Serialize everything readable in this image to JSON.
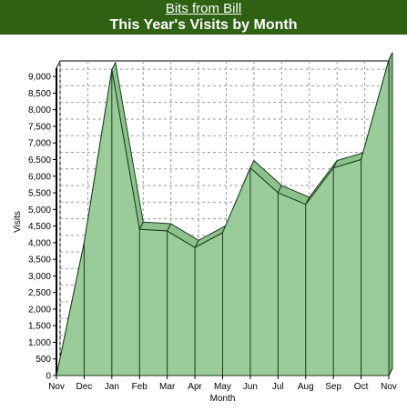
{
  "header": {
    "site_link": "Bits from Bill",
    "title": "This Year's Visits by Month",
    "background_color": "#2e6112"
  },
  "chart_data": {
    "type": "area",
    "title": "This Year's Visits by Month",
    "xlabel": "Month",
    "ylabel": "Visits",
    "categories": [
      "Nov",
      "Dec",
      "Jan",
      "Feb",
      "Mar",
      "Apr",
      "May",
      "Jun",
      "Jul",
      "Aug",
      "Sep",
      "Oct",
      "Nov"
    ],
    "series": [
      {
        "values": [
          0,
          4000,
          9200,
          4400,
          4350,
          3850,
          4300,
          6250,
          5500,
          5150,
          6250,
          6500,
          9500
        ]
      }
    ],
    "ylim": [
      0,
      9250
    ],
    "yticks": [
      0,
      500,
      1000,
      1500,
      2000,
      2500,
      3000,
      3500,
      4000,
      4500,
      5000,
      5500,
      6000,
      6500,
      7000,
      7500,
      8000,
      8500,
      9000
    ],
    "ytick_labels": [
      "0",
      "500",
      "1,000",
      "1,500",
      "2,000",
      "2,500",
      "3,000",
      "3,500",
      "4,000",
      "4,500",
      "5,000",
      "5,500",
      "6,000",
      "6,500",
      "7,000",
      "7,500",
      "8,000",
      "8,500",
      "9,000"
    ],
    "grid": true,
    "style": "3d-area",
    "area_color": "#99cc99",
    "outline_color": "#1a3a1a"
  }
}
